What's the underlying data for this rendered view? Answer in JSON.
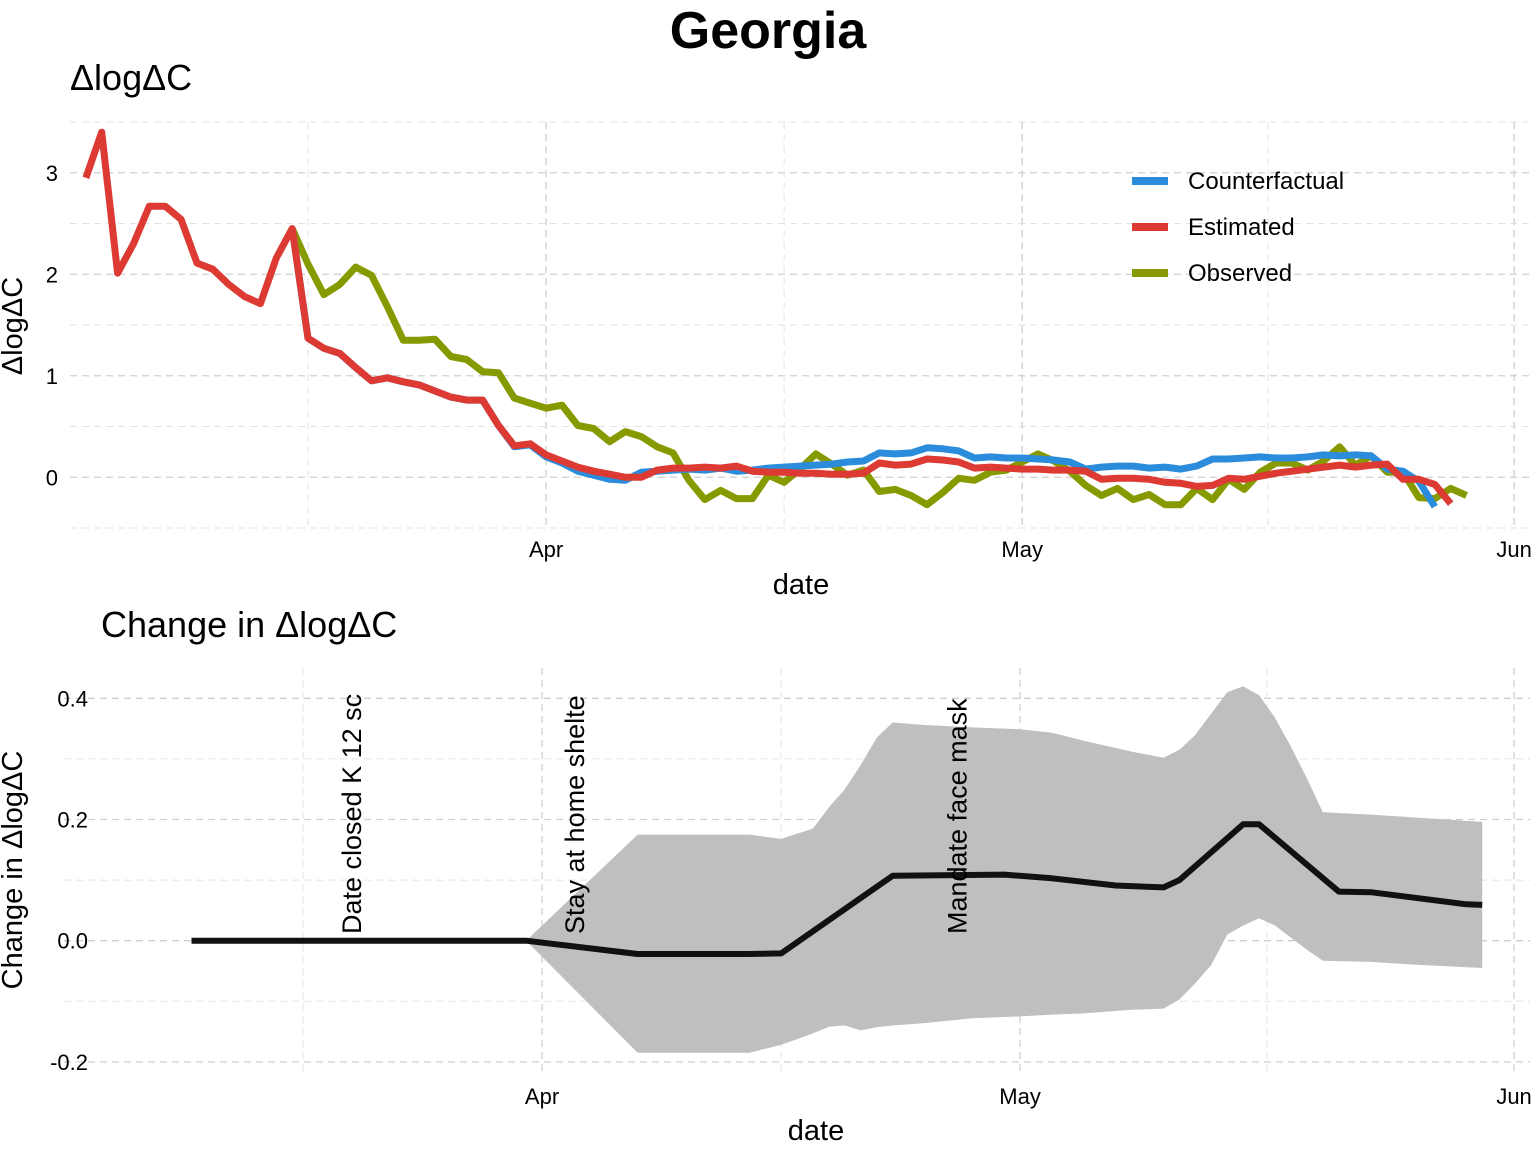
{
  "figure": {
    "title": "Georgia"
  },
  "chart_data": [
    {
      "type": "line",
      "title": "ΔlogΔC",
      "xlabel": "date",
      "ylabel": "ΔlogΔC",
      "x_start": "2020-03-02",
      "x_end": "2020-06-02",
      "x_ticks": [
        {
          "date": "2020-04-01",
          "label": "Apr"
        },
        {
          "date": "2020-05-01",
          "label": "May"
        },
        {
          "date": "2020-06-01",
          "label": "Jun"
        }
      ],
      "ylim": [
        -0.5,
        3.5
      ],
      "y_ticks": [
        0,
        1,
        2,
        3
      ],
      "grid": true,
      "legend": {
        "position": "top-right",
        "entries": [
          "Counterfactual",
          "Estimated",
          "Observed"
        ]
      },
      "colors": {
        "Counterfactual": "#2b8cdc",
        "Estimated": "#dc3a32",
        "Observed": "#869a00"
      },
      "series": [
        {
          "name": "Counterfactual",
          "start_date": "2020-03-16",
          "values": [
            2.45,
            1.37,
            1.27,
            1.22,
            1.08,
            0.95,
            0.98,
            0.94,
            0.91,
            0.85,
            0.79,
            0.76,
            0.76,
            0.51,
            0.3,
            0.32,
            0.2,
            0.14,
            0.06,
            0.02,
            -0.02,
            -0.03,
            0.05,
            0.06,
            0.07,
            0.08,
            0.07,
            0.09,
            0.06,
            0.07,
            0.09,
            0.1,
            0.11,
            0.12,
            0.13,
            0.15,
            0.16,
            0.24,
            0.23,
            0.24,
            0.29,
            0.28,
            0.26,
            0.19,
            0.2,
            0.19,
            0.19,
            0.18,
            0.17,
            0.15,
            0.08,
            0.1,
            0.11,
            0.11,
            0.09,
            0.1,
            0.08,
            0.11,
            0.18,
            0.18,
            0.19,
            0.2,
            0.19,
            0.19,
            0.2,
            0.22,
            0.21,
            0.22,
            0.21,
            0.08,
            0.06,
            -0.04,
            -0.29
          ]
        },
        {
          "name": "Estimated",
          "start_date": "2020-03-03",
          "values": [
            2.95,
            3.4,
            2.01,
            2.3,
            2.67,
            2.67,
            2.54,
            2.11,
            2.05,
            1.9,
            1.78,
            1.71,
            2.16,
            2.45,
            1.37,
            1.27,
            1.22,
            1.08,
            0.95,
            0.98,
            0.94,
            0.91,
            0.85,
            0.79,
            0.76,
            0.76,
            0.51,
            0.31,
            0.33,
            0.22,
            0.16,
            0.1,
            0.06,
            0.03,
            0.0,
            0.0,
            0.07,
            0.09,
            0.09,
            0.1,
            0.09,
            0.11,
            0.06,
            0.05,
            0.05,
            0.04,
            0.04,
            0.03,
            0.03,
            0.04,
            0.14,
            0.12,
            0.13,
            0.18,
            0.17,
            0.15,
            0.09,
            0.1,
            0.09,
            0.08,
            0.08,
            0.07,
            0.07,
            0.06,
            -0.02,
            -0.01,
            -0.01,
            -0.02,
            -0.05,
            -0.06,
            -0.09,
            -0.08,
            -0.01,
            -0.02,
            0.01,
            0.04,
            0.06,
            0.08,
            0.1,
            0.12,
            0.1,
            0.12,
            0.13,
            -0.02,
            -0.02,
            -0.07,
            -0.26
          ]
        },
        {
          "name": "Observed",
          "start_date": "2020-03-16",
          "values": [
            2.45,
            2.1,
            1.8,
            1.9,
            2.07,
            1.99,
            1.68,
            1.35,
            1.35,
            1.36,
            1.19,
            1.16,
            1.04,
            1.03,
            0.78,
            0.73,
            0.68,
            0.71,
            0.51,
            0.48,
            0.35,
            0.45,
            0.4,
            0.3,
            0.24,
            -0.03,
            -0.22,
            -0.13,
            -0.21,
            -0.21,
            0.02,
            -0.05,
            0.08,
            0.23,
            0.13,
            0.02,
            0.07,
            -0.14,
            -0.12,
            -0.18,
            -0.27,
            -0.15,
            -0.01,
            -0.03,
            0.05,
            0.07,
            0.15,
            0.23,
            0.16,
            0.06,
            -0.08,
            -0.18,
            -0.11,
            -0.22,
            -0.17,
            -0.27,
            -0.27,
            -0.11,
            -0.22,
            -0.02,
            -0.12,
            0.05,
            0.14,
            0.14,
            0.07,
            0.16,
            0.3,
            0.12,
            0.21,
            0.05,
            0.05,
            -0.2,
            -0.21,
            -0.11,
            -0.18
          ]
        }
      ]
    },
    {
      "type": "line",
      "title": "Change in ΔlogΔC",
      "xlabel": "date",
      "ylabel": "Change in ΔlogΔC",
      "x_start": "2020-03-02",
      "x_end": "2020-06-02",
      "x_ticks": [
        {
          "date": "2020-04-01",
          "label": "Apr"
        },
        {
          "date": "2020-05-01",
          "label": "May"
        },
        {
          "date": "2020-06-01",
          "label": "Jun"
        }
      ],
      "ylim": [
        -0.22,
        0.45
      ],
      "y_ticks": [
        {
          "value": -0.2,
          "label": "-0.2"
        },
        {
          "value": 0.0,
          "label": "0.0"
        },
        {
          "value": 0.2,
          "label": "0.2"
        },
        {
          "value": 0.4,
          "label": "0.4"
        }
      ],
      "grid": true,
      "colors": {
        "line": "#111111",
        "band": "#bfbfbf"
      },
      "series": [
        {
          "points": [
            [
              "2020-03-10",
              0.0
            ],
            [
              "2020-03-31",
              0.0
            ],
            [
              "2020-04-07",
              -0.022
            ],
            [
              "2020-04-14",
              -0.022
            ],
            [
              "2020-04-16",
              -0.021
            ],
            [
              "2020-04-23",
              0.107
            ],
            [
              "2020-04-30",
              0.109
            ],
            [
              "2020-05-03",
              0.103
            ],
            [
              "2020-05-07",
              0.091
            ],
            [
              "2020-05-10",
              0.088
            ],
            [
              "2020-05-11",
              0.1
            ],
            [
              "2020-05-15",
              0.192
            ],
            [
              "2020-05-16",
              0.192
            ],
            [
              "2020-05-21",
              0.081
            ],
            [
              "2020-05-23",
              0.08
            ],
            [
              "2020-05-29",
              0.06
            ],
            [
              "2020-05-30",
              0.059
            ]
          ]
        }
      ],
      "confidence_band": [
        [
          "2020-03-31",
          0.0,
          0.0
        ],
        [
          "2020-04-07",
          -0.185,
          0.175
        ],
        [
          "2020-04-14",
          -0.185,
          0.175
        ],
        [
          "2020-04-16",
          -0.172,
          0.168
        ],
        [
          "2020-04-18",
          -0.153,
          0.185
        ],
        [
          "2020-04-19",
          -0.142,
          0.22
        ],
        [
          "2020-04-20",
          -0.14,
          0.25
        ],
        [
          "2020-04-21",
          -0.148,
          0.29
        ],
        [
          "2020-04-22",
          -0.143,
          0.335
        ],
        [
          "2020-04-23",
          -0.14,
          0.36
        ],
        [
          "2020-04-25",
          -0.136,
          0.356
        ],
        [
          "2020-04-28",
          -0.128,
          0.352
        ],
        [
          "2020-05-01",
          -0.125,
          0.349
        ],
        [
          "2020-05-03",
          -0.122,
          0.343
        ],
        [
          "2020-05-05",
          -0.12,
          0.33
        ],
        [
          "2020-05-08",
          -0.114,
          0.312
        ],
        [
          "2020-05-10",
          -0.112,
          0.302
        ],
        [
          "2020-05-11",
          -0.097,
          0.315
        ],
        [
          "2020-05-12",
          -0.07,
          0.34
        ],
        [
          "2020-05-13",
          -0.04,
          0.375
        ],
        [
          "2020-05-14",
          0.01,
          0.41
        ],
        [
          "2020-05-15",
          0.025,
          0.42
        ],
        [
          "2020-05-16",
          0.037,
          0.405
        ],
        [
          "2020-05-17",
          0.025,
          0.368
        ],
        [
          "2020-05-18",
          0.005,
          0.32
        ],
        [
          "2020-05-19",
          -0.015,
          0.268
        ],
        [
          "2020-05-20",
          -0.033,
          0.212
        ],
        [
          "2020-05-23",
          -0.035,
          0.208
        ],
        [
          "2020-05-26",
          -0.04,
          0.203
        ],
        [
          "2020-05-30",
          -0.045,
          0.196
        ]
      ],
      "annotations": [
        {
          "date": "2020-03-20",
          "label": "Date closed K 12 sc"
        },
        {
          "date": "2020-04-03",
          "label": "Stay at home  shelte"
        },
        {
          "date": "2020-04-27",
          "label": "Mandate face mask"
        }
      ]
    }
  ]
}
